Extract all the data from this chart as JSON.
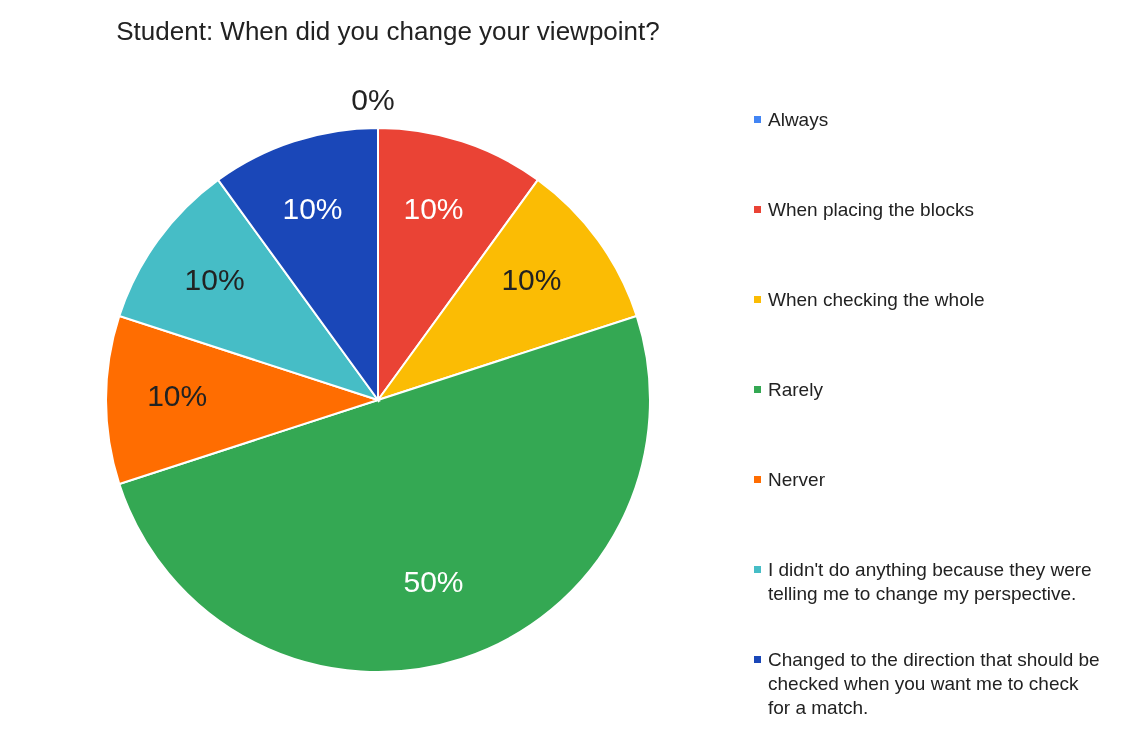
{
  "chart_data": {
    "type": "pie",
    "title": "Student: When did you change your viewpoint?",
    "categories": [
      "Always",
      "When placing the blocks",
      "When checking the whole",
      "Rarely",
      "Nerver",
      "I didn't do anything because they were telling me to change my perspective.",
      "Changed to the direction that should be checked when you want me to check for a match."
    ],
    "values": [
      0,
      10,
      10,
      50,
      10,
      10,
      10
    ],
    "colors": [
      "#4285f4",
      "#ea4335",
      "#fbbc04",
      "#34a853",
      "#ff6d01",
      "#46bdc6",
      "#1a47b8"
    ],
    "value_labels": [
      "0%",
      "10%",
      "10%",
      "50%",
      "10%",
      "10%",
      "10%"
    ],
    "legend": "right"
  }
}
